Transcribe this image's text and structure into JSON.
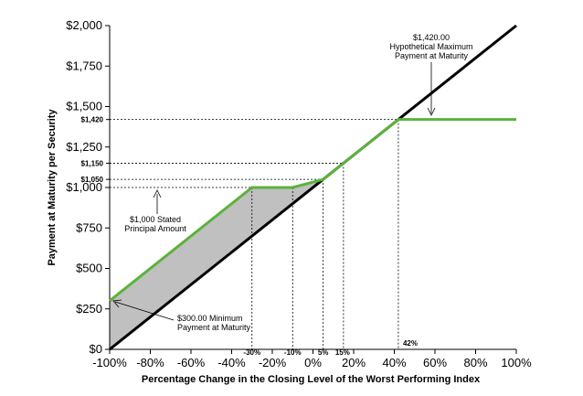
{
  "chart_data": {
    "type": "line",
    "xlabel": "Percentage Change in the Closing Level of the Worst Performing Index",
    "ylabel": "Payment at Maturity per Security",
    "xlim": [
      -100,
      100
    ],
    "ylim": [
      0,
      2000
    ],
    "x_ticks": [
      -100,
      -80,
      -60,
      -40,
      -20,
      0,
      20,
      40,
      60,
      80,
      100
    ],
    "x_tick_labels": [
      "-100%",
      "-80%",
      "-60%",
      "-40%",
      "-20%",
      "0%",
      "20%",
      "40%",
      "60%",
      "80%",
      "100%"
    ],
    "y_ticks": [
      0,
      250,
      500,
      750,
      1000,
      1250,
      1500,
      1750,
      2000
    ],
    "y_tick_labels": [
      "$0",
      "$250",
      "$500",
      "$750",
      "$1,000",
      "$1,250",
      "$1,500",
      "$1,750",
      "$2,000"
    ],
    "y_special_ticks": [
      1050,
      1150,
      1420
    ],
    "y_special_tick_labels": [
      "$1,050",
      "$1,150",
      "$1,420"
    ],
    "x_special_ticks": [
      -30,
      -10,
      5,
      15,
      42
    ],
    "x_special_tick_labels": [
      "-30%",
      "-10%",
      "5%",
      "15%",
      "42%"
    ],
    "grid": false,
    "series": [
      {
        "color": "#000000",
        "points": [
          [
            -100,
            0
          ],
          [
            100,
            2000
          ]
        ]
      },
      {
        "color": "#5bb33a",
        "points": [
          [
            -100,
            300
          ],
          [
            -30,
            1000
          ],
          [
            -10,
            1000
          ],
          [
            5,
            1050
          ],
          [
            15,
            1150
          ],
          [
            42,
            1420
          ],
          [
            100,
            1420
          ]
        ]
      }
    ],
    "shaded_region_color": "#c0c0c0",
    "annotations": {
      "max": [
        "$1,420.00",
        "Hypothetical Maximum",
        "Payment at Maturity"
      ],
      "principal": [
        "$1,000 Stated",
        "Principal Amount"
      ],
      "min": [
        "$300.00 Minimum",
        "Payment at Maturity"
      ]
    }
  }
}
